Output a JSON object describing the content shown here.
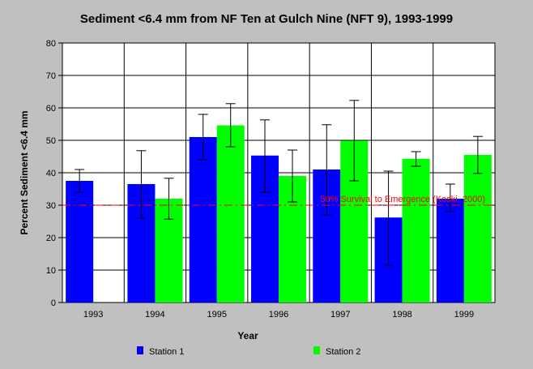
{
  "chart_data": {
    "type": "bar",
    "title": "Sediment <6.4 mm from NF Ten at Gulch Nine (NFT 9), 1993-1999",
    "xlabel": "Year",
    "ylabel": "Percent Sediment <6.4 mm",
    "ylim": [
      0,
      80
    ],
    "yticks": [
      0,
      10,
      20,
      30,
      40,
      50,
      60,
      70,
      80
    ],
    "categories": [
      "1993",
      "1994",
      "1995",
      "1996",
      "1997",
      "1998",
      "1999"
    ],
    "grid": true,
    "legend_position": "bottom",
    "series": [
      {
        "name": "Station 1",
        "color": "#0000ff",
        "values": [
          37.5,
          36.5,
          51,
          45.3,
          41,
          26.2,
          32
        ],
        "error_low": [
          34,
          26,
          44,
          34,
          27,
          11.5,
          28
        ],
        "error_high": [
          41,
          46.8,
          58,
          56.3,
          54.8,
          40.5,
          36.5
        ]
      },
      {
        "name": "Station 2",
        "color": "#00ff00",
        "values": [
          null,
          32,
          54.6,
          39,
          49.9,
          44.3,
          45.5
        ],
        "error_low": [
          null,
          25.7,
          48,
          31,
          37.5,
          42,
          39.8
        ],
        "error_high": [
          null,
          38.3,
          61.3,
          47,
          62.3,
          46.5,
          51.2
        ]
      }
    ],
    "reference_line": {
      "value": 30,
      "label": "50% Survival to Emergence (Koski, 2000)",
      "color": "#ff0000"
    }
  }
}
